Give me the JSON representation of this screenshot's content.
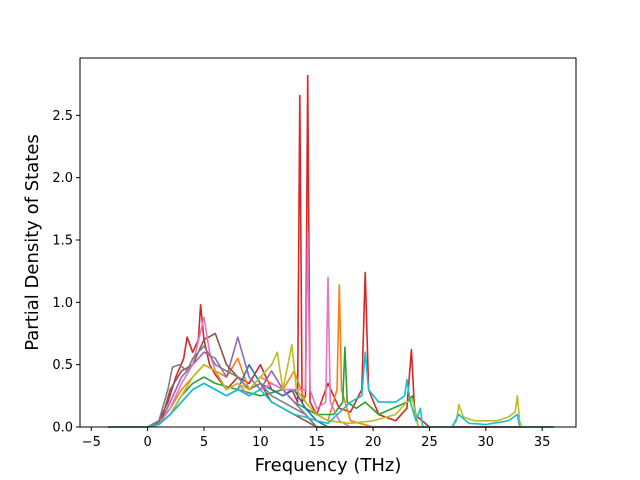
{
  "chart_data": {
    "type": "line",
    "title": "",
    "xlabel": "Frequency (THz)",
    "ylabel": "Partial Density of States",
    "xlim": [
      -6.0,
      38.0
    ],
    "ylim": [
      0.0,
      2.96
    ],
    "xticks": [
      -5,
      0,
      5,
      10,
      15,
      20,
      25,
      30,
      35
    ],
    "yticks": [
      0.0,
      0.5,
      1.0,
      1.5,
      2.0,
      2.5
    ],
    "xtick_labels": [
      "−5",
      "0",
      "5",
      "10",
      "15",
      "20",
      "25",
      "30",
      "35"
    ],
    "ytick_labels": [
      "0.0",
      "0.5",
      "1.0",
      "1.5",
      "2.0",
      "2.5"
    ],
    "grid": false,
    "legend": "none",
    "series": [
      {
        "color": "#d62728",
        "points": [
          [
            -3.5,
            0
          ],
          [
            0,
            0
          ],
          [
            1.0,
            0.05
          ],
          [
            1.8,
            0.2
          ],
          [
            2.5,
            0.4
          ],
          [
            3.2,
            0.55
          ],
          [
            3.5,
            0.72
          ],
          [
            4.0,
            0.6
          ],
          [
            4.5,
            0.7
          ],
          [
            4.7,
            0.98
          ],
          [
            5.0,
            0.7
          ],
          [
            5.5,
            0.5
          ],
          [
            6.0,
            0.42
          ],
          [
            7.0,
            0.3
          ],
          [
            8.0,
            0.4
          ],
          [
            9.0,
            0.35
          ],
          [
            10.0,
            0.5
          ],
          [
            11.0,
            0.3
          ],
          [
            12.0,
            0.25
          ],
          [
            12.8,
            0.3
          ],
          [
            13.3,
            0.2
          ],
          [
            13.5,
            2.66
          ],
          [
            13.7,
            0.2
          ],
          [
            14.0,
            0.25
          ],
          [
            14.2,
            2.82
          ],
          [
            14.4,
            0.2
          ],
          [
            15.0,
            0.1
          ],
          [
            16.0,
            0.35
          ],
          [
            17.0,
            0.15
          ],
          [
            18.0,
            0.12
          ],
          [
            19.0,
            0.3
          ],
          [
            19.3,
            1.24
          ],
          [
            19.6,
            0.3
          ],
          [
            20.5,
            0.1
          ],
          [
            22.0,
            0.05
          ],
          [
            23.0,
            0.15
          ],
          [
            23.4,
            0.62
          ],
          [
            23.7,
            0.1
          ],
          [
            25.0,
            0
          ],
          [
            36.0,
            0
          ]
        ]
      },
      {
        "color": "#ff7f0e",
        "points": [
          [
            -3.5,
            0
          ],
          [
            0,
            0
          ],
          [
            1.0,
            0.03
          ],
          [
            2.0,
            0.15
          ],
          [
            3.0,
            0.3
          ],
          [
            4.0,
            0.4
          ],
          [
            5.0,
            0.5
          ],
          [
            6.0,
            0.45
          ],
          [
            7.0,
            0.4
          ],
          [
            8.0,
            0.55
          ],
          [
            9.0,
            0.3
          ],
          [
            10.0,
            0.4
          ],
          [
            11.0,
            0.35
          ],
          [
            12.0,
            0.3
          ],
          [
            13.0,
            0.45
          ],
          [
            14.0,
            0.2
          ],
          [
            15.0,
            0.1
          ],
          [
            16.0,
            0.05
          ],
          [
            16.8,
            0.3
          ],
          [
            17.0,
            1.14
          ],
          [
            17.2,
            0.3
          ],
          [
            18.0,
            0.05
          ],
          [
            20.0,
            0
          ],
          [
            36.0,
            0
          ]
        ]
      },
      {
        "color": "#2ca02c",
        "points": [
          [
            -3.5,
            0
          ],
          [
            0,
            0
          ],
          [
            1.0,
            0.02
          ],
          [
            2.0,
            0.1
          ],
          [
            3.0,
            0.25
          ],
          [
            4.0,
            0.35
          ],
          [
            5.0,
            0.4
          ],
          [
            6.0,
            0.35
          ],
          [
            8.0,
            0.3
          ],
          [
            10.0,
            0.25
          ],
          [
            12.0,
            0.3
          ],
          [
            13.0,
            0.2
          ],
          [
            15.0,
            0.1
          ],
          [
            16.5,
            0.1
          ],
          [
            17.3,
            0.2
          ],
          [
            17.5,
            0.64
          ],
          [
            17.7,
            0.2
          ],
          [
            18.5,
            0.15
          ],
          [
            19.3,
            0.2
          ],
          [
            20.5,
            0.1
          ],
          [
            23.0,
            0.2
          ],
          [
            23.5,
            0.25
          ],
          [
            24.0,
            0
          ],
          [
            36.0,
            0
          ]
        ]
      },
      {
        "color": "#1f77b4",
        "points": [
          [
            -3.5,
            0
          ],
          [
            0,
            0
          ],
          [
            1.0,
            0.02
          ],
          [
            2.0,
            0.1
          ],
          [
            3.0,
            0.2
          ],
          [
            4.0,
            0.3
          ],
          [
            5.0,
            0.35
          ],
          [
            6.0,
            0.3
          ],
          [
            7.0,
            0.25
          ],
          [
            8.0,
            0.3
          ],
          [
            9.0,
            0.5
          ],
          [
            10.0,
            0.35
          ],
          [
            11.0,
            0.3
          ],
          [
            12.0,
            0.25
          ],
          [
            13.0,
            0.3
          ],
          [
            14.0,
            0.15
          ],
          [
            15.0,
            0.05
          ],
          [
            16.0,
            0
          ],
          [
            36.0,
            0
          ]
        ]
      },
      {
        "color": "#9467bd",
        "points": [
          [
            -3.5,
            0
          ],
          [
            0,
            0
          ],
          [
            1.2,
            0.05
          ],
          [
            2.0,
            0.2
          ],
          [
            3.0,
            0.4
          ],
          [
            4.0,
            0.5
          ],
          [
            5.0,
            0.6
          ],
          [
            6.0,
            0.55
          ],
          [
            7.0,
            0.4
          ],
          [
            8.0,
            0.72
          ],
          [
            9.0,
            0.4
          ],
          [
            10.0,
            0.3
          ],
          [
            11.0,
            0.45
          ],
          [
            12.0,
            0.3
          ],
          [
            13.0,
            0.2
          ],
          [
            14.0,
            0.1
          ],
          [
            15.0,
            0
          ],
          [
            36.0,
            0
          ]
        ]
      },
      {
        "color": "#8c564b",
        "points": [
          [
            -3.5,
            0
          ],
          [
            0,
            0
          ],
          [
            1.2,
            0.05
          ],
          [
            2.0,
            0.3
          ],
          [
            3.0,
            0.45
          ],
          [
            4.0,
            0.5
          ],
          [
            5.0,
            0.7
          ],
          [
            6.0,
            0.75
          ],
          [
            7.0,
            0.5
          ],
          [
            8.0,
            0.4
          ],
          [
            9.0,
            0.3
          ],
          [
            10.0,
            0.35
          ],
          [
            11.0,
            0.2
          ],
          [
            12.0,
            0.15
          ],
          [
            13.0,
            0.1
          ],
          [
            14.0,
            0.05
          ],
          [
            15.0,
            0
          ],
          [
            36.0,
            0
          ]
        ]
      },
      {
        "color": "#e377c2",
        "points": [
          [
            -3.5,
            0
          ],
          [
            0,
            0
          ],
          [
            1.0,
            0.02
          ],
          [
            2.0,
            0.15
          ],
          [
            3.0,
            0.35
          ],
          [
            4.0,
            0.5
          ],
          [
            5.0,
            0.88
          ],
          [
            5.5,
            0.6
          ],
          [
            6.0,
            0.45
          ],
          [
            7.0,
            0.3
          ],
          [
            8.0,
            0.35
          ],
          [
            9.0,
            0.25
          ],
          [
            10.0,
            0.3
          ],
          [
            11.0,
            0.35
          ],
          [
            12.0,
            0.3
          ],
          [
            13.0,
            0.3
          ],
          [
            14.0,
            0.3
          ],
          [
            14.2,
            1.57
          ],
          [
            14.4,
            0.3
          ],
          [
            15.0,
            0.15
          ],
          [
            15.8,
            0.2
          ],
          [
            16.0,
            1.2
          ],
          [
            16.2,
            0.2
          ],
          [
            17.0,
            0.05
          ],
          [
            18.0,
            0
          ],
          [
            36.0,
            0
          ]
        ]
      },
      {
        "color": "#7f7f7f",
        "points": [
          [
            -3.5,
            0
          ],
          [
            0,
            0
          ],
          [
            1.0,
            0.05
          ],
          [
            1.8,
            0.3
          ],
          [
            2.2,
            0.48
          ],
          [
            2.8,
            0.5
          ],
          [
            3.5,
            0.45
          ],
          [
            4.0,
            0.55
          ],
          [
            5.0,
            0.65
          ],
          [
            6.0,
            0.5
          ],
          [
            7.0,
            0.45
          ],
          [
            8.0,
            0.4
          ],
          [
            9.0,
            0.3
          ],
          [
            10.0,
            0.35
          ],
          [
            11.0,
            0.25
          ],
          [
            12.0,
            0.2
          ],
          [
            13.0,
            0.15
          ],
          [
            14.0,
            0.1
          ],
          [
            15.0,
            0
          ],
          [
            36.0,
            0
          ]
        ]
      },
      {
        "color": "#bcbd22",
        "points": [
          [
            -3.5,
            0
          ],
          [
            0,
            0
          ],
          [
            1.0,
            0.02
          ],
          [
            2.0,
            0.1
          ],
          [
            3.0,
            0.25
          ],
          [
            4.0,
            0.4
          ],
          [
            5.0,
            0.5
          ],
          [
            6.0,
            0.45
          ],
          [
            7.0,
            0.3
          ],
          [
            8.0,
            0.35
          ],
          [
            9.0,
            0.3
          ],
          [
            10.0,
            0.4
          ],
          [
            11.0,
            0.5
          ],
          [
            11.5,
            0.6
          ],
          [
            12.0,
            0.3
          ],
          [
            12.8,
            0.66
          ],
          [
            13.2,
            0.3
          ],
          [
            14.0,
            0.2
          ],
          [
            15.0,
            0.1
          ],
          [
            16.0,
            0.05
          ],
          [
            18.0,
            0.03
          ],
          [
            20.0,
            0.05
          ],
          [
            22.0,
            0.1
          ],
          [
            23.0,
            0.2
          ],
          [
            23.5,
            0.22
          ],
          [
            24.0,
            0
          ],
          [
            27.0,
            0
          ],
          [
            27.4,
            0.05
          ],
          [
            27.6,
            0.18
          ],
          [
            28.0,
            0.08
          ],
          [
            29.0,
            0.05
          ],
          [
            31.0,
            0.05
          ],
          [
            32.0,
            0.08
          ],
          [
            32.6,
            0.12
          ],
          [
            32.8,
            0.25
          ],
          [
            33.0,
            0.05
          ],
          [
            33.2,
            0
          ],
          [
            36.0,
            0
          ]
        ]
      },
      {
        "color": "#17becf",
        "points": [
          [
            -3.5,
            0
          ],
          [
            0,
            0
          ],
          [
            1.0,
            0.02
          ],
          [
            2.0,
            0.1
          ],
          [
            3.0,
            0.2
          ],
          [
            4.0,
            0.3
          ],
          [
            5.0,
            0.35
          ],
          [
            6.0,
            0.3
          ],
          [
            7.0,
            0.25
          ],
          [
            8.0,
            0.3
          ],
          [
            9.0,
            0.25
          ],
          [
            10.0,
            0.3
          ],
          [
            11.0,
            0.2
          ],
          [
            12.0,
            0.15
          ],
          [
            13.0,
            0.1
          ],
          [
            14.0,
            0.08
          ],
          [
            15.0,
            0.05
          ],
          [
            16.0,
            0.03
          ],
          [
            18.0,
            0.2
          ],
          [
            19.0,
            0.25
          ],
          [
            19.3,
            0.6
          ],
          [
            19.6,
            0.3
          ],
          [
            20.5,
            0.2
          ],
          [
            22.0,
            0.2
          ],
          [
            22.8,
            0.25
          ],
          [
            23.0,
            0.38
          ],
          [
            23.3,
            0.2
          ],
          [
            23.8,
            0.05
          ],
          [
            24.2,
            0.15
          ],
          [
            24.4,
            0
          ],
          [
            27.0,
            0
          ],
          [
            27.6,
            0.1
          ],
          [
            28.5,
            0.03
          ],
          [
            30.0,
            0.02
          ],
          [
            32.0,
            0.05
          ],
          [
            32.8,
            0.1
          ],
          [
            33.0,
            0
          ],
          [
            36.0,
            0
          ]
        ]
      }
    ]
  }
}
